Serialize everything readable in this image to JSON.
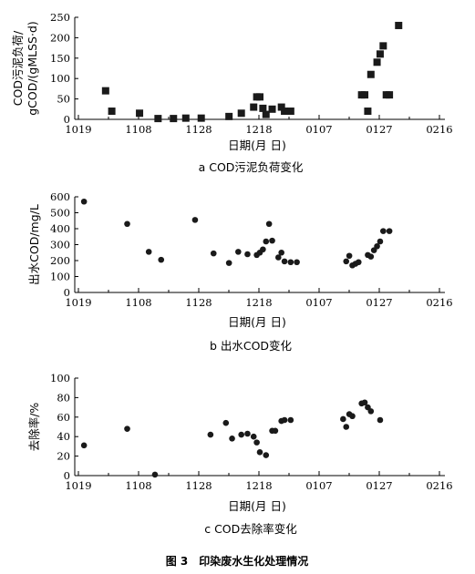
{
  "figure_caption": "图 3　印染废水生化处理情况",
  "x_tick_labels": [
    "1019",
    "1108",
    "1128",
    "1218",
    "0107",
    "0127",
    "0216"
  ],
  "chart_data": [
    {
      "type": "scatter",
      "marker": "square",
      "caption": "a COD污泥负荷变化",
      "xlabel": "日期(月  日)",
      "ylabel_lines": [
        "COD污泥负荷/",
        "gCOD/(gMLSS·d)"
      ],
      "ylim": [
        0,
        250
      ],
      "yticks": [
        "0",
        "50",
        "100",
        "150",
        "200",
        "250"
      ],
      "x": [
        10,
        12,
        21,
        27,
        32,
        36,
        41,
        50,
        54,
        58,
        59,
        60,
        61,
        62,
        64,
        67,
        68,
        70,
        93,
        94,
        95,
        96,
        98,
        99,
        100,
        101,
        102,
        105
      ],
      "y": [
        70,
        20,
        15,
        2,
        2,
        3,
        3,
        7,
        15,
        30,
        55,
        55,
        27,
        12,
        25,
        30,
        20,
        20,
        60,
        60,
        20,
        110,
        140,
        160,
        180,
        60,
        60,
        230
      ]
    },
    {
      "type": "scatter",
      "marker": "circle",
      "caption": "b 出水COD变化",
      "xlabel": "日期(月  日)",
      "ylabel_lines": [
        "出水COD/mg/L"
      ],
      "ylim": [
        0,
        600
      ],
      "yticks": [
        "0",
        "100",
        "200",
        "300",
        "400",
        "500",
        "600"
      ],
      "x": [
        3,
        17,
        24,
        28,
        39,
        45,
        50,
        53,
        56,
        59,
        60,
        61,
        62,
        63,
        64,
        66,
        67,
        68,
        70,
        72,
        88,
        89,
        90,
        91,
        92,
        95,
        96,
        97,
        98,
        99,
        100,
        102
      ],
      "y": [
        570,
        430,
        255,
        205,
        455,
        245,
        185,
        255,
        240,
        235,
        250,
        270,
        320,
        430,
        325,
        220,
        250,
        195,
        190,
        190,
        195,
        230,
        170,
        180,
        190,
        235,
        225,
        265,
        290,
        320,
        385,
        385
      ]
    },
    {
      "type": "scatter",
      "marker": "circle",
      "caption": "c COD去除率变化",
      "xlabel": "日期(月  日)",
      "ylabel_lines": [
        "去除率/%"
      ],
      "ylim": [
        0,
        100
      ],
      "yticks": [
        "0",
        "20",
        "40",
        "60",
        "80",
        "100"
      ],
      "x": [
        3,
        17,
        26,
        44,
        49,
        51,
        54,
        56,
        58,
        59,
        60,
        62,
        64,
        65,
        67,
        68,
        70,
        87,
        88,
        89,
        90,
        93,
        94,
        95,
        96,
        99
      ],
      "y": [
        31,
        48,
        1,
        42,
        54,
        38,
        42,
        43,
        40,
        34,
        24,
        21,
        46,
        46,
        56,
        57,
        57,
        58,
        50,
        63,
        61,
        74,
        75,
        70,
        66,
        57
      ]
    }
  ]
}
